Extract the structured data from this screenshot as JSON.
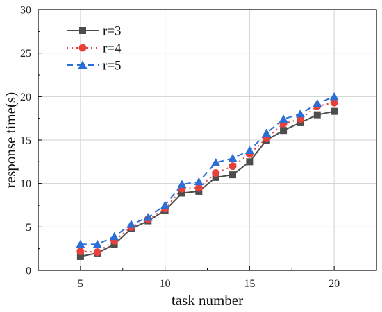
{
  "chart_data": {
    "type": "line",
    "title": "",
    "xlabel": "task number",
    "ylabel": "response time(s)",
    "xlim": [
      2.5,
      22.5
    ],
    "ylim": [
      0,
      30
    ],
    "xticks": [
      5,
      10,
      15,
      20
    ],
    "yticks": [
      0,
      5,
      10,
      15,
      20,
      25,
      30
    ],
    "grid": true,
    "legend_position": "top-left",
    "x": [
      5,
      6,
      7,
      8,
      9,
      10,
      11,
      12,
      13,
      14,
      15,
      16,
      17,
      18,
      19,
      20
    ],
    "series": [
      {
        "name": "r=3",
        "color": "#4d4d4d",
        "line": "solid",
        "marker": "square",
        "values": [
          1.6,
          2.0,
          3.0,
          4.8,
          5.7,
          6.9,
          8.9,
          9.1,
          10.7,
          11.0,
          12.5,
          15.0,
          16.1,
          17.0,
          17.9,
          18.3
        ]
      },
      {
        "name": "r=4",
        "color": "#e8413c",
        "line": "dotted",
        "marker": "circle",
        "values": [
          2.2,
          2.1,
          3.4,
          5.0,
          5.9,
          7.1,
          9.4,
          9.5,
          11.2,
          12.0,
          13.4,
          15.2,
          16.9,
          17.4,
          18.9,
          19.3
        ]
      },
      {
        "name": "r=5",
        "color": "#2b6fd6",
        "line": "dashed",
        "marker": "triangle",
        "values": [
          3.0,
          3.0,
          3.9,
          5.3,
          6.1,
          7.5,
          9.9,
          10.2,
          12.4,
          12.9,
          13.8,
          15.8,
          17.4,
          18.0,
          19.2,
          20.0
        ]
      }
    ]
  }
}
